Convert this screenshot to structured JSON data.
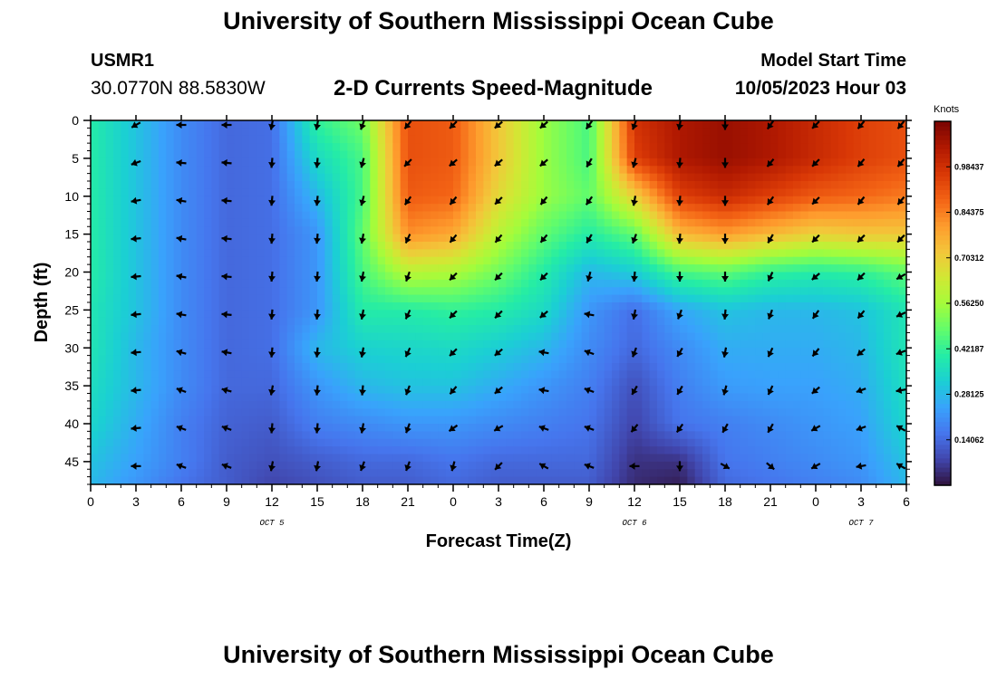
{
  "header": {
    "title": "University of Southern Mississippi Ocean Cube",
    "station": "USMR1",
    "coords": "30.0770N  88.5830W",
    "subtitle": "2-D Currents Speed-Magnitude",
    "model_start_label": "Model Start Time",
    "model_start_value": "10/05/2023 Hour 03"
  },
  "footer": {
    "title": "University of Southern Mississippi Ocean Cube"
  },
  "chart_data": {
    "type": "heatmap",
    "xlabel": "Forecast Time(Z)",
    "ylabel": "Depth (ft)",
    "x_ticks": [
      "0",
      "3",
      "6",
      "9",
      "12",
      "15",
      "18",
      "21",
      "0",
      "3",
      "6",
      "9",
      "12",
      "15",
      "18",
      "21",
      "0",
      "3",
      "6"
    ],
    "x_range_hours": [
      0,
      54
    ],
    "date_labels": [
      {
        "label": "OCT 5",
        "hour": 12
      },
      {
        "label": "OCT 6",
        "hour": 36
      },
      {
        "label": "OCT 7",
        "hour": 51
      }
    ],
    "y_ticks": [
      "0",
      "5",
      "10",
      "15",
      "20",
      "25",
      "30",
      "35",
      "40",
      "45"
    ],
    "y_range_ft": [
      0,
      48
    ],
    "colorbar": {
      "unit": "Knots",
      "min": 0,
      "max": 1.125,
      "labels": [
        "0.98437",
        "0.84375",
        "0.70312",
        "0.56250",
        "0.42187",
        "0.28125",
        "0.14062"
      ],
      "values": [
        0.98437,
        0.84375,
        0.70312,
        0.5625,
        0.42187,
        0.28125,
        0.14062
      ],
      "colormap": [
        "#30123b",
        "#4145ab",
        "#4675ed",
        "#39a2fc",
        "#1bcfd4",
        "#24eca6",
        "#61fc6c",
        "#a4fc3b",
        "#d1e834",
        "#f3c63a",
        "#fe9b2d",
        "#f36315",
        "#d93806",
        "#b11901",
        "#7a0402"
      ]
    },
    "depths_ft": [
      0,
      5,
      10,
      15,
      20,
      25,
      30,
      35,
      40,
      45,
      48
    ],
    "hours": [
      0,
      3,
      6,
      9,
      12,
      15,
      18,
      21,
      24,
      27,
      30,
      33,
      36,
      39,
      42,
      45,
      48,
      51,
      54
    ],
    "speed_knots": [
      [
        0.4,
        0.3,
        0.2,
        0.14,
        0.15,
        0.42,
        0.5,
        0.92,
        0.9,
        0.72,
        0.55,
        0.45,
        0.98,
        1.05,
        1.08,
        1.05,
        1.0,
        0.95,
        0.92
      ],
      [
        0.4,
        0.3,
        0.2,
        0.14,
        0.15,
        0.35,
        0.45,
        0.92,
        0.9,
        0.72,
        0.55,
        0.45,
        0.95,
        1.05,
        1.08,
        1.05,
        1.0,
        0.95,
        0.92
      ],
      [
        0.4,
        0.3,
        0.2,
        0.14,
        0.15,
        0.28,
        0.45,
        0.9,
        0.88,
        0.68,
        0.55,
        0.48,
        0.7,
        0.95,
        1.0,
        0.95,
        0.9,
        0.88,
        0.85
      ],
      [
        0.4,
        0.3,
        0.2,
        0.14,
        0.15,
        0.22,
        0.48,
        0.82,
        0.78,
        0.6,
        0.48,
        0.4,
        0.48,
        0.75,
        0.8,
        0.75,
        0.7,
        0.72,
        0.72
      ],
      [
        0.4,
        0.3,
        0.2,
        0.14,
        0.15,
        0.22,
        0.45,
        0.6,
        0.58,
        0.5,
        0.4,
        0.28,
        0.32,
        0.45,
        0.48,
        0.42,
        0.4,
        0.42,
        0.48
      ],
      [
        0.38,
        0.3,
        0.2,
        0.14,
        0.15,
        0.22,
        0.4,
        0.4,
        0.42,
        0.4,
        0.35,
        0.22,
        0.15,
        0.25,
        0.3,
        0.28,
        0.28,
        0.3,
        0.38
      ],
      [
        0.38,
        0.28,
        0.2,
        0.14,
        0.15,
        0.28,
        0.33,
        0.34,
        0.35,
        0.32,
        0.28,
        0.2,
        0.14,
        0.2,
        0.26,
        0.26,
        0.26,
        0.28,
        0.38
      ],
      [
        0.36,
        0.28,
        0.2,
        0.14,
        0.14,
        0.22,
        0.28,
        0.3,
        0.3,
        0.26,
        0.22,
        0.18,
        0.1,
        0.18,
        0.23,
        0.24,
        0.24,
        0.26,
        0.36
      ],
      [
        0.34,
        0.26,
        0.18,
        0.13,
        0.12,
        0.18,
        0.2,
        0.22,
        0.22,
        0.2,
        0.18,
        0.16,
        0.08,
        0.16,
        0.18,
        0.2,
        0.22,
        0.24,
        0.34
      ],
      [
        0.3,
        0.24,
        0.18,
        0.12,
        0.1,
        0.12,
        0.14,
        0.14,
        0.16,
        0.14,
        0.14,
        0.14,
        0.05,
        0.05,
        0.16,
        0.18,
        0.2,
        0.22,
        0.3
      ],
      [
        0.28,
        0.22,
        0.16,
        0.12,
        0.08,
        0.1,
        0.12,
        0.12,
        0.14,
        0.12,
        0.12,
        0.12,
        0.04,
        0.02,
        0.14,
        0.16,
        0.18,
        0.2,
        0.28
      ]
    ],
    "arrow_hours": [
      3,
      6,
      9,
      12,
      15,
      18,
      21,
      24,
      27,
      30,
      33,
      36,
      39,
      42,
      45,
      48,
      51,
      54
    ],
    "arrow_depths_ft": [
      0,
      5,
      10,
      15,
      20,
      25,
      30,
      35,
      40,
      45
    ],
    "arrow_direction_deg": [
      [
        240,
        270,
        270,
        190,
        190,
        200,
        220,
        225,
        230,
        230,
        215,
        200,
        190,
        180,
        215,
        225,
        220,
        220
      ],
      [
        250,
        275,
        275,
        185,
        185,
        195,
        225,
        230,
        230,
        230,
        210,
        195,
        185,
        180,
        220,
        225,
        220,
        220
      ],
      [
        260,
        280,
        275,
        185,
        185,
        195,
        215,
        220,
        225,
        220,
        215,
        190,
        185,
        180,
        215,
        225,
        220,
        220
      ],
      [
        265,
        280,
        275,
        185,
        185,
        190,
        205,
        220,
        220,
        220,
        210,
        200,
        185,
        180,
        210,
        225,
        225,
        225
      ],
      [
        265,
        280,
        275,
        185,
        185,
        190,
        200,
        225,
        225,
        225,
        195,
        185,
        180,
        180,
        205,
        230,
        225,
        240
      ],
      [
        265,
        280,
        275,
        185,
        185,
        190,
        205,
        225,
        225,
        230,
        280,
        190,
        200,
        185,
        200,
        215,
        220,
        245
      ],
      [
        265,
        285,
        280,
        185,
        185,
        190,
        205,
        225,
        230,
        280,
        290,
        200,
        210,
        190,
        205,
        220,
        230,
        250
      ],
      [
        265,
        290,
        285,
        190,
        185,
        185,
        200,
        220,
        230,
        280,
        290,
        210,
        210,
        195,
        205,
        230,
        250,
        260
      ],
      [
        265,
        290,
        290,
        185,
        185,
        190,
        200,
        235,
        240,
        290,
        290,
        220,
        215,
        210,
        210,
        240,
        250,
        300
      ],
      [
        270,
        290,
        290,
        190,
        190,
        200,
        200,
        195,
        225,
        300,
        290,
        270,
        180,
        120,
        130,
        240,
        260,
        300
      ]
    ],
    "grid": false,
    "legend_placement": "right"
  }
}
